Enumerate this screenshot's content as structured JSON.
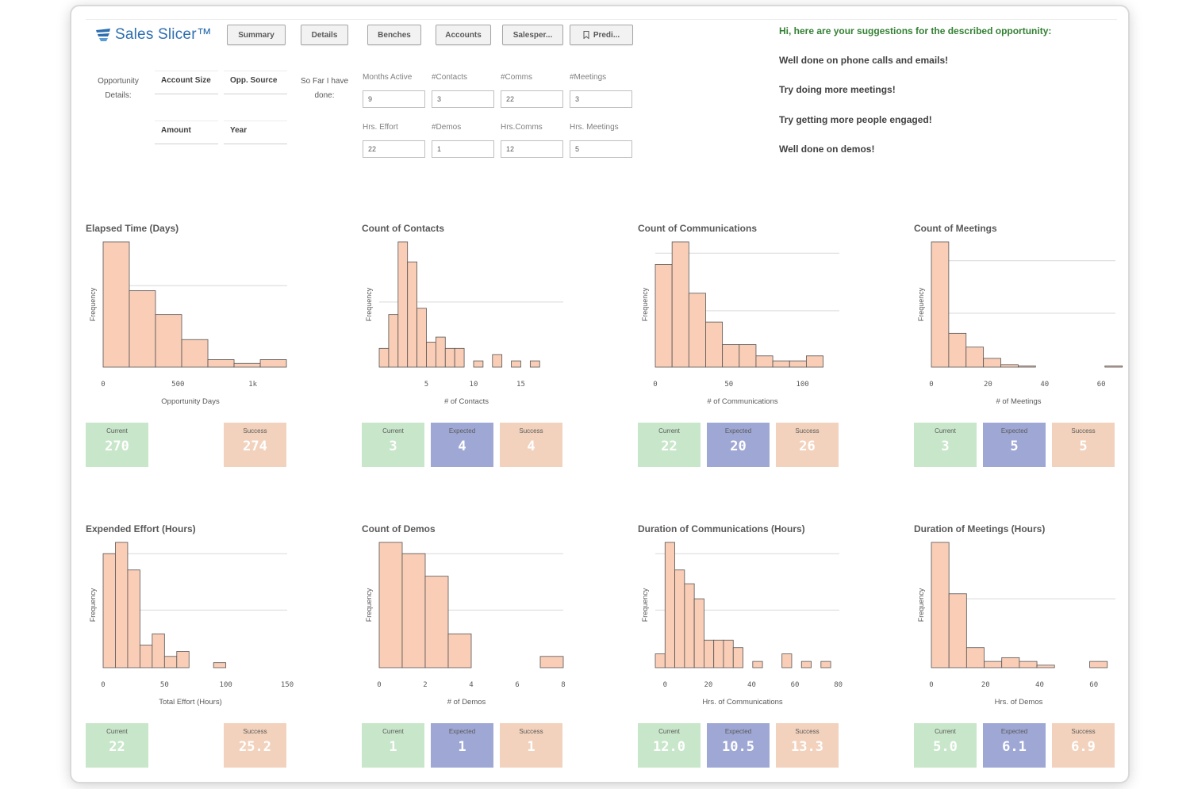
{
  "app": {
    "name": "Sales Slicer™",
    "nav": [
      {
        "label": "Summary"
      },
      {
        "label": "Details"
      },
      {
        "label": "Benches"
      },
      {
        "label": "Accounts"
      },
      {
        "label": "Salesper..."
      },
      {
        "label": "Predi..."
      }
    ]
  },
  "opportunity": {
    "label_line1": "Opportunity",
    "label_line2": "Details:",
    "fields": [
      "Account Size",
      "Opp. Source",
      "Amount",
      "Year"
    ]
  },
  "so_far": {
    "label_line1": "So Far I have",
    "label_line2": "done:",
    "inputs": [
      {
        "label": "Months Active",
        "value": "9"
      },
      {
        "label": "#Contacts",
        "value": "3"
      },
      {
        "label": "#Comms",
        "value": "22"
      },
      {
        "label": "#Meetings",
        "value": "3"
      },
      {
        "label": "Hrs. Effort",
        "value": "22"
      },
      {
        "label": "#Demos",
        "value": "1"
      },
      {
        "label": "Hrs.Comms",
        "value": "12"
      },
      {
        "label": "Hrs. Meetings",
        "value": "5"
      }
    ]
  },
  "suggestions": {
    "title": "Hi, here are your suggestions for the described opportunity:",
    "items": [
      "Well done on phone calls and emails!",
      "Try doing more meetings!",
      "Try getting more people engaged!",
      "Well done on demos!"
    ]
  },
  "colors": {
    "bar_fill": "#f9cdb6",
    "bar_stroke": "#555555",
    "current": "#c8e6c9",
    "expected": "#9fa8d5",
    "success": "#f2d2bd"
  },
  "chart_data": [
    {
      "type": "bar",
      "title": "Elapsed Time (Days)",
      "xlabel": "Opportunity Days",
      "ylabel": "Frequency",
      "xlim": [
        0,
        1230
      ],
      "ticks": [
        0,
        500,
        1000
      ],
      "tick_labels": [
        "0",
        "500",
        "1k"
      ],
      "bin_start": 0,
      "bin_width": 175,
      "values": [
        100,
        61,
        42,
        22,
        6,
        3,
        6
      ],
      "ylim": [
        0,
        100
      ],
      "gridlines": [
        65
      ],
      "tiles": [
        {
          "kind": "current",
          "label": "Current",
          "value": "270"
        },
        {
          "kind": "success",
          "label": "Success",
          "value": "274"
        }
      ]
    },
    {
      "type": "bar",
      "title": "Count of Contacts",
      "xlabel": "# of Contacts",
      "ylabel": "Frequency",
      "xlim": [
        0,
        19.5
      ],
      "ticks": [
        5,
        10,
        15
      ],
      "tick_labels": [
        "5",
        "10",
        "15"
      ],
      "bin_start": 0,
      "bin_width": 1,
      "values": [
        15,
        42,
        100,
        84,
        47,
        20,
        24,
        15,
        15,
        0,
        5,
        0,
        10,
        0,
        5,
        0,
        5
      ],
      "ylim": [
        0,
        100
      ],
      "gridlines": [
        52
      ],
      "tiles": [
        {
          "kind": "current",
          "label": "Current",
          "value": "3"
        },
        {
          "kind": "expected",
          "label": "Expected",
          "value": "4"
        },
        {
          "kind": "success",
          "label": "Success",
          "value": "4"
        }
      ]
    },
    {
      "type": "bar",
      "title": "Count of Communications",
      "xlabel": "# of Communications",
      "ylabel": "Frequency",
      "xlim": [
        0,
        125
      ],
      "ticks": [
        0,
        50,
        100
      ],
      "tick_labels": [
        "0",
        "50",
        "100"
      ],
      "bin_start": 0,
      "bin_width": 11.4,
      "values": [
        82,
        100,
        59,
        36,
        18,
        18,
        9,
        5,
        5,
        9
      ],
      "ylim": [
        0,
        100
      ],
      "gridlines": [
        91,
        45
      ],
      "tiles": [
        {
          "kind": "current",
          "label": "Current",
          "value": "22"
        },
        {
          "kind": "expected",
          "label": "Expected",
          "value": "20"
        },
        {
          "kind": "success",
          "label": "Success",
          "value": "26"
        }
      ]
    },
    {
      "type": "bar",
      "title": "Count of Meetings",
      "xlabel": "# of Meetings",
      "ylabel": "Frequency",
      "xlim": [
        0,
        65
      ],
      "ticks": [
        0,
        20,
        40,
        60
      ],
      "tick_labels": [
        "0",
        "20",
        "40",
        "60"
      ],
      "bin_start": 0,
      "bin_width": 6.13,
      "values": [
        100,
        27,
        16,
        7,
        2,
        1,
        0,
        0,
        0,
        0,
        1
      ],
      "ylim": [
        0,
        100
      ],
      "gridlines": [
        85,
        43
      ],
      "tiles": [
        {
          "kind": "current",
          "label": "Current",
          "value": "3"
        },
        {
          "kind": "expected",
          "label": "Expected",
          "value": "5"
        },
        {
          "kind": "success",
          "label": "Success",
          "value": "5"
        }
      ]
    },
    {
      "type": "bar",
      "title": "Expended Effort (Hours)",
      "xlabel": "Total Effort (Hours)",
      "ylabel": "Frequency",
      "xlim": [
        0,
        150
      ],
      "ticks": [
        0,
        50,
        100,
        150
      ],
      "tick_labels": [
        "0",
        "50",
        "100",
        "150"
      ],
      "bin_start": 0,
      "bin_width": 10,
      "values": [
        91,
        100,
        78,
        18,
        27,
        9,
        13,
        0,
        0,
        4
      ],
      "ylim": [
        0,
        100
      ],
      "gridlines": [
        91,
        46
      ],
      "tiles": [
        {
          "kind": "current",
          "label": "Current",
          "value": "22"
        },
        {
          "kind": "success",
          "label": "Success",
          "value": "25.2"
        }
      ]
    },
    {
      "type": "bar",
      "title": "Count of Demos",
      "xlabel": "# of Demos",
      "ylabel": "Frequency",
      "xlim": [
        0,
        8
      ],
      "ticks": [
        0,
        2,
        4,
        6,
        8
      ],
      "tick_labels": [
        "0",
        "2",
        "4",
        "6",
        "8"
      ],
      "bin_start": 0,
      "bin_width": 1,
      "values": [
        100,
        91,
        73,
        27,
        0,
        0,
        0,
        9
      ],
      "ylim": [
        0,
        100
      ],
      "gridlines": [
        91,
        46
      ],
      "tiles": [
        {
          "kind": "current",
          "label": "Current",
          "value": "1"
        },
        {
          "kind": "expected",
          "label": "Expected",
          "value": "1"
        },
        {
          "kind": "success",
          "label": "Success",
          "value": "1"
        }
      ]
    },
    {
      "type": "bar",
      "title": "Duration of Communications (Hours)",
      "xlabel": "Hrs. of Communications",
      "ylabel": "Frequency",
      "xlim": [
        -4.5,
        80.5
      ],
      "ticks": [
        0,
        20,
        40,
        60,
        80
      ],
      "tick_labels": [
        "0",
        "20",
        "40",
        "60",
        "80"
      ],
      "bin_start": -4.5,
      "bin_width": 4.5,
      "values": [
        11,
        100,
        78,
        67,
        55,
        22,
        22,
        22,
        16,
        0,
        5,
        0,
        0,
        11,
        0,
        5,
        0,
        5
      ],
      "ylim": [
        0,
        100
      ],
      "gridlines": [
        91,
        46
      ],
      "tiles": [
        {
          "kind": "current",
          "label": "Current",
          "value": "12.0"
        },
        {
          "kind": "expected",
          "label": "Expected",
          "value": "10.5"
        },
        {
          "kind": "success",
          "label": "Success",
          "value": "13.3"
        }
      ]
    },
    {
      "type": "bar",
      "title": "Duration of Meetings (Hours)",
      "xlabel": "Hrs. of Demos",
      "ylabel": "Frequency",
      "xlim": [
        0,
        68
      ],
      "ticks": [
        0,
        20,
        40,
        60
      ],
      "tick_labels": [
        "0",
        "20",
        "40",
        "60"
      ],
      "bin_start": 0,
      "bin_width": 6.5,
      "values": [
        100,
        59,
        16,
        5,
        8,
        5,
        2,
        0,
        0,
        5
      ],
      "ylim": [
        0,
        100
      ],
      "gridlines": [
        55
      ],
      "tiles": [
        {
          "kind": "current",
          "label": "Current",
          "value": "5.0"
        },
        {
          "kind": "expected",
          "label": "Expected",
          "value": "6.1"
        },
        {
          "kind": "success",
          "label": "Success",
          "value": "6.9"
        }
      ]
    }
  ]
}
